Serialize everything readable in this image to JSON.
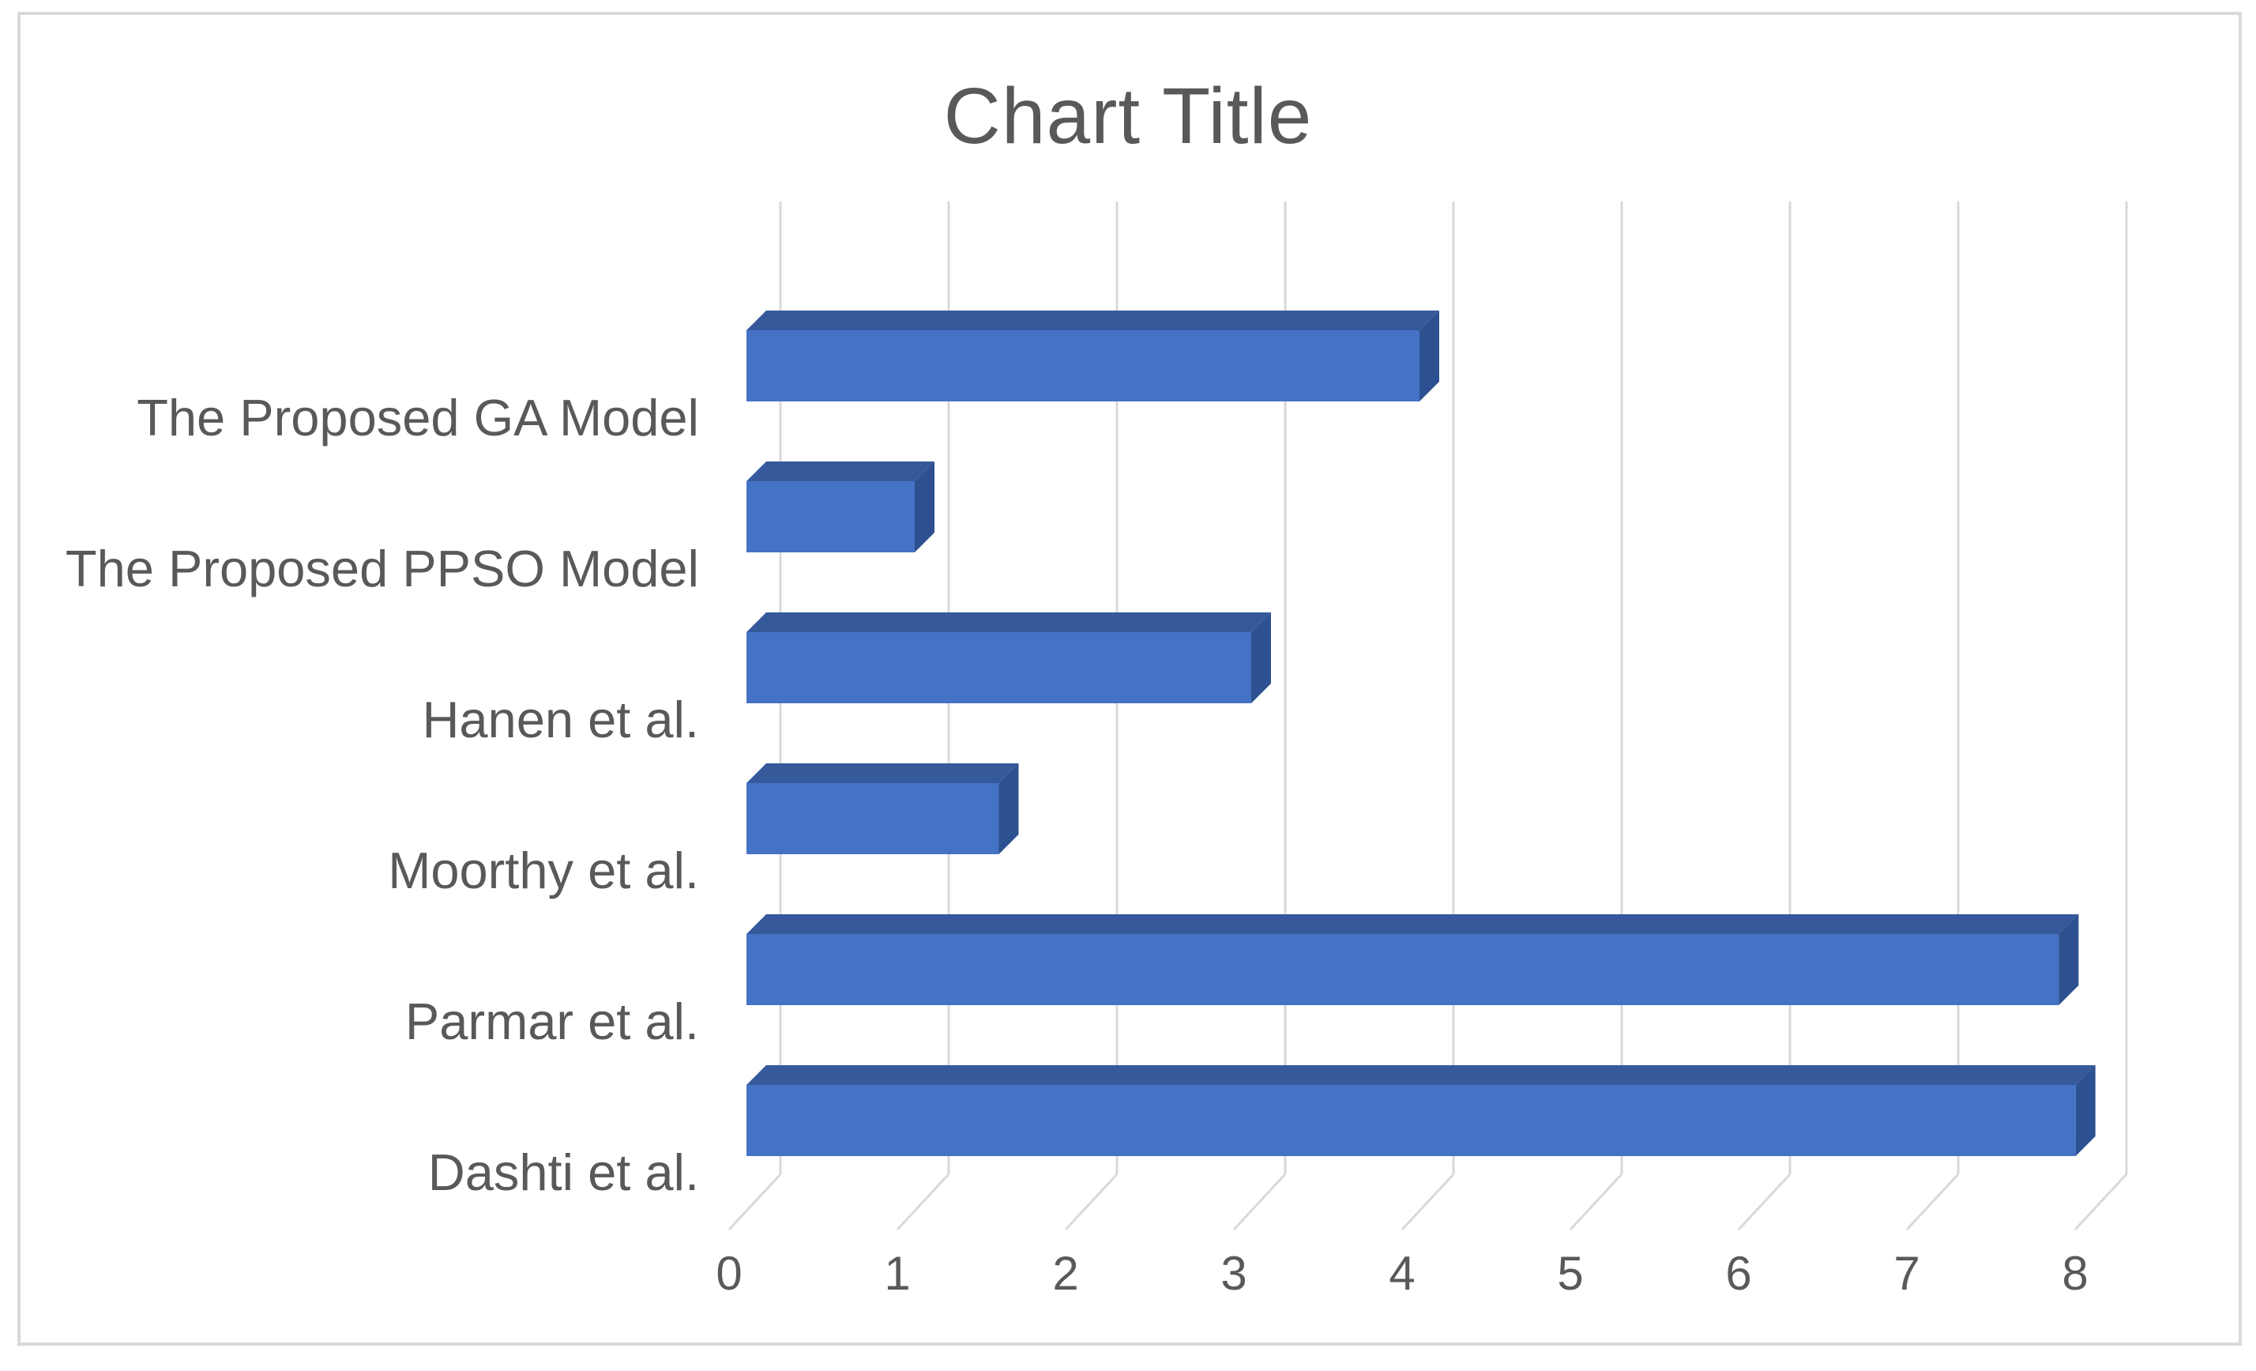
{
  "window": {
    "background_color": "#ffffff",
    "frame_border_color": "#d9d9d9"
  },
  "chart_data": {
    "type": "bar",
    "orientation": "horizontal",
    "style": "3d",
    "title": "Chart Title",
    "categories": [
      "The Proposed GA Model",
      "The Proposed PPSO Model",
      "Hanen et al.",
      "Moorthy et al.",
      "Parmar et al.",
      "Dashti et al."
    ],
    "values": [
      4,
      1,
      3,
      1.5,
      7.8,
      7.9
    ],
    "xlabel": "",
    "ylabel": "",
    "xlim": [
      0,
      8
    ],
    "x_ticks": [
      0,
      1,
      2,
      3,
      4,
      5,
      6,
      7,
      8
    ],
    "grid": true,
    "legend": false,
    "colors": {
      "bar_front": "#4472C4",
      "bar_top": "#35599B",
      "bar_side": "#2D5190",
      "gridline": "#D9D9D9",
      "text": "#595959"
    }
  }
}
